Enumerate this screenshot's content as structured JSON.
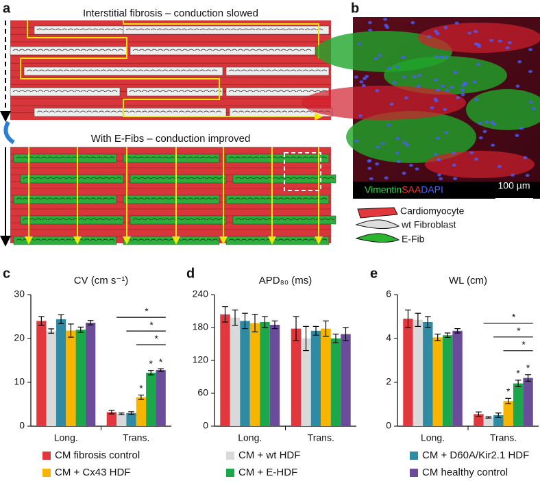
{
  "panel_labels": [
    "a",
    "b",
    "c",
    "d",
    "e"
  ],
  "schematic": {
    "top_title": "Interstitial fibrosis – conduction slowed",
    "bottom_title": "With E-Fibs – conduction improved"
  },
  "micrograph": {
    "stains": [
      "Vimentin",
      "SAA",
      "DAPI"
    ],
    "scale_bar": "100 µm"
  },
  "cell_legend": [
    "Cardiomyocyte",
    "wt Fibroblast",
    "E-Fib"
  ],
  "chart_data": [
    {
      "type": "bar",
      "title": "CV (cm s⁻¹)",
      "categories": [
        "Long.",
        "Trans."
      ],
      "ylim": [
        0,
        30
      ],
      "yticks": [
        0,
        10,
        20,
        30
      ],
      "series": [
        {
          "name": "CM fibrosis control",
          "color": "#e2383d",
          "values": [
            24,
            3.2
          ],
          "errors": [
            1,
            0.4
          ]
        },
        {
          "name": "CM + wt HDF",
          "color": "#d9d9d9",
          "values": [
            21.7,
            2.8
          ],
          "errors": [
            0.5,
            0.2
          ]
        },
        {
          "name": "CM + D60A/Kir2.1 HDF",
          "color": "#2f8aa3",
          "values": [
            24.4,
            3.0
          ],
          "errors": [
            1,
            0.3
          ]
        },
        {
          "name": "CM + Cx43 HDF",
          "color": "#f7b500",
          "values": [
            21.8,
            6.6
          ],
          "errors": [
            1.5,
            0.5
          ]
        },
        {
          "name": "CM + E-HDF",
          "color": "#1aa84a",
          "values": [
            22,
            12.2
          ],
          "errors": [
            0.6,
            0.5
          ]
        },
        {
          "name": "CM healthy control",
          "color": "#6a4c9a",
          "values": [
            23.6,
            12.8
          ],
          "errors": [
            0.5,
            0.3
          ]
        }
      ],
      "bar_stars": [
        "*",
        "*",
        "*"
      ],
      "bracket_stars": [
        "*",
        "*",
        "*"
      ]
    },
    {
      "type": "bar",
      "title": "APD₈₀ (ms)",
      "categories": [
        "Long.",
        "Trans."
      ],
      "ylim": [
        0,
        240
      ],
      "yticks": [
        0,
        60,
        120,
        180,
        240
      ],
      "series": [
        {
          "values": [
            204,
            178
          ],
          "errors": [
            14,
            22
          ]
        },
        {
          "values": [
            198,
            160
          ],
          "errors": [
            14,
            22
          ]
        },
        {
          "values": [
            192,
            174
          ],
          "errors": [
            14,
            8
          ]
        },
        {
          "values": [
            188,
            178
          ],
          "errors": [
            16,
            14
          ]
        },
        {
          "values": [
            190,
            160
          ],
          "errors": [
            10,
            8
          ]
        },
        {
          "values": [
            185,
            168
          ],
          "errors": [
            7,
            12
          ]
        }
      ]
    },
    {
      "type": "bar",
      "title": "WL (cm)",
      "categories": [
        "Long.",
        "Trans."
      ],
      "ylim": [
        0,
        6
      ],
      "yticks": [
        0,
        2,
        4,
        6
      ],
      "series": [
        {
          "values": [
            4.9,
            0.55
          ],
          "errors": [
            0.4,
            0.1
          ]
        },
        {
          "values": [
            4.85,
            0.4
          ],
          "errors": [
            0.3,
            0.03
          ]
        },
        {
          "values": [
            4.75,
            0.5
          ],
          "errors": [
            0.25,
            0.1
          ]
        },
        {
          "values": [
            4.05,
            1.15
          ],
          "errors": [
            0.15,
            0.12
          ]
        },
        {
          "values": [
            4.15,
            1.95
          ],
          "errors": [
            0.1,
            0.15
          ]
        },
        {
          "values": [
            4.35,
            2.2
          ],
          "errors": [
            0.1,
            0.15
          ]
        }
      ],
      "bar_stars": [
        "*",
        "*",
        "*"
      ],
      "bracket_stars": [
        "*",
        "*",
        "*"
      ]
    }
  ]
}
